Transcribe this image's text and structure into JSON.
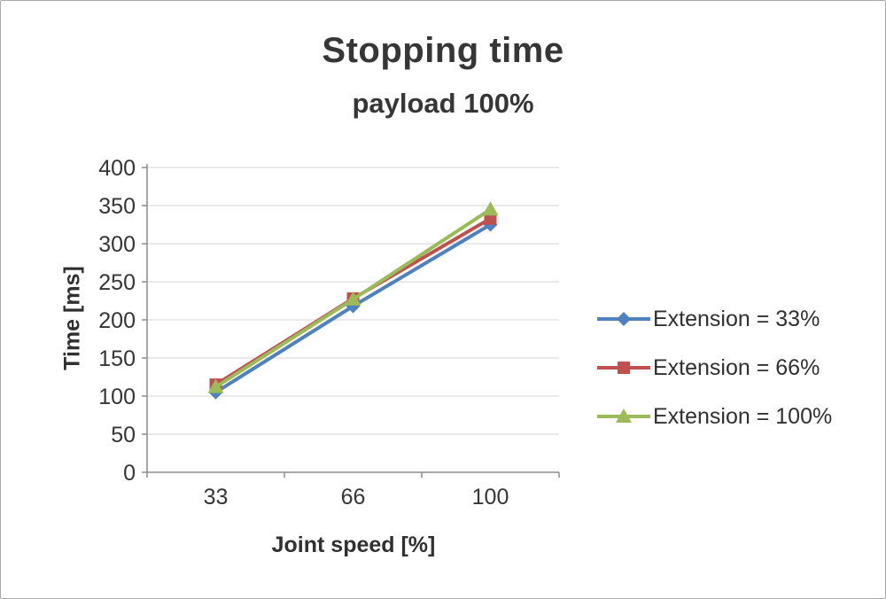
{
  "chart": {
    "title": "Stopping time",
    "subtitle": "payload 100%"
  },
  "chart_data": {
    "type": "line",
    "title": "Stopping time",
    "subtitle": "payload 100%",
    "categories": [
      "33",
      "66",
      "100"
    ],
    "series": [
      {
        "name": "Extension = 33%",
        "values": [
          105,
          218,
          325
        ],
        "color": "#4f81bd",
        "marker": "diamond"
      },
      {
        "name": "Extension = 66%",
        "values": [
          115,
          228,
          333
        ],
        "color": "#c0504d",
        "marker": "square"
      },
      {
        "name": "Extension = 100%",
        "values": [
          112,
          227,
          345
        ],
        "color": "#9bbb59",
        "marker": "triangle"
      }
    ],
    "xlabel": "Joint speed [%]",
    "ylabel": "Time [ms]",
    "ylim": [
      0,
      400
    ],
    "ytick_step": 50,
    "grid": true,
    "legend_position": "right",
    "axis_color": "#8c8c8c",
    "grid_color": "#d6d6d6",
    "tick_text_color": "#353535"
  }
}
